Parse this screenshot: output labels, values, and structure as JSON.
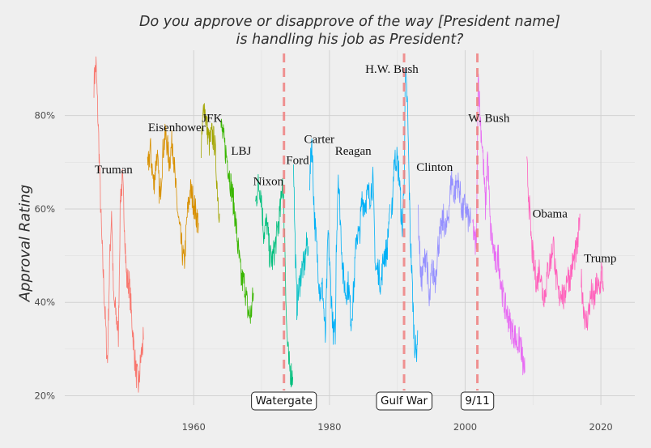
{
  "chart_data": {
    "type": "line",
    "title": "Do you approve or disapprove of the way [President name]",
    "title_line2": "is handling his job as President?",
    "xlabel": "",
    "ylabel": "Approval Rating",
    "xlim": [
      1941,
      2025
    ],
    "ylim": [
      18,
      94
    ],
    "x_ticks": [
      1960,
      1980,
      2000,
      2020
    ],
    "x_tick_labels": [
      "1960",
      "1980",
      "2000",
      "2020"
    ],
    "y_ticks": [
      20,
      40,
      60,
      80
    ],
    "y_tick_labels": [
      "20%",
      "40%",
      "60%",
      "80%"
    ],
    "grid": true,
    "legend": "none",
    "series": [
      {
        "name": "Truman",
        "color": "#F8766D",
        "label_x": 1948.2,
        "label_y": 68.5,
        "points": [
          [
            1945.3,
            87
          ],
          [
            1945.6,
            91
          ],
          [
            1946.0,
            75
          ],
          [
            1946.4,
            55
          ],
          [
            1946.8,
            42
          ],
          [
            1947.1,
            32
          ],
          [
            1947.3,
            27
          ],
          [
            1947.6,
            48
          ],
          [
            1947.9,
            60
          ],
          [
            1948.2,
            40
          ],
          [
            1948.5,
            38
          ],
          [
            1948.9,
            33
          ],
          [
            1949.2,
            63
          ],
          [
            1949.5,
            66
          ],
          [
            1949.8,
            57
          ],
          [
            1950.1,
            45
          ],
          [
            1950.5,
            44
          ],
          [
            1950.8,
            38
          ],
          [
            1951.2,
            30
          ],
          [
            1951.5,
            25
          ],
          [
            1951.9,
            22
          ],
          [
            1952.2,
            28
          ],
          [
            1952.6,
            32
          ]
        ]
      },
      {
        "name": "Eisenhower",
        "color": "#D89000",
        "label_x": 1957.5,
        "label_y": 77.5,
        "points": [
          [
            1953.2,
            68
          ],
          [
            1953.6,
            73
          ],
          [
            1954.1,
            65
          ],
          [
            1954.6,
            72
          ],
          [
            1955.0,
            62
          ],
          [
            1955.5,
            73
          ],
          [
            1955.9,
            76
          ],
          [
            1956.4,
            70
          ],
          [
            1956.9,
            75
          ],
          [
            1957.3,
            65
          ],
          [
            1957.8,
            57
          ],
          [
            1958.2,
            52
          ],
          [
            1958.6,
            48
          ],
          [
            1959.0,
            58
          ],
          [
            1959.5,
            64
          ],
          [
            1959.9,
            62
          ],
          [
            1960.3,
            59
          ],
          [
            1960.7,
            57
          ]
        ]
      },
      {
        "name": "JFK",
        "color": "#A3A500",
        "label_x": 1962.7,
        "label_y": 79.5,
        "points": [
          [
            1961.1,
            72
          ],
          [
            1961.5,
            83
          ],
          [
            1961.9,
            78
          ],
          [
            1962.3,
            74
          ],
          [
            1962.7,
            76
          ],
          [
            1963.1,
            74
          ],
          [
            1963.5,
            64
          ],
          [
            1963.8,
            59
          ]
        ]
      },
      {
        "name": "LBJ",
        "color": "#39B600",
        "label_x": 1967.0,
        "label_y": 72.5,
        "points": [
          [
            1964.0,
            78
          ],
          [
            1964.5,
            74
          ],
          [
            1965.0,
            70
          ],
          [
            1965.5,
            65
          ],
          [
            1966.0,
            60
          ],
          [
            1966.5,
            52
          ],
          [
            1967.0,
            45
          ],
          [
            1967.5,
            44
          ],
          [
            1968.0,
            38
          ],
          [
            1968.4,
            37
          ],
          [
            1968.8,
            42
          ]
        ]
      },
      {
        "name": "Nixon",
        "color": "#00BF7D",
        "label_x": 1971.0,
        "label_y": 66,
        "points": [
          [
            1969.1,
            61
          ],
          [
            1969.5,
            65
          ],
          [
            1969.9,
            64
          ],
          [
            1970.3,
            55
          ],
          [
            1970.8,
            57
          ],
          [
            1971.2,
            50
          ],
          [
            1971.6,
            49
          ],
          [
            1972.0,
            52
          ],
          [
            1972.4,
            56
          ],
          [
            1972.8,
            60
          ],
          [
            1973.1,
            67
          ],
          [
            1973.4,
            55
          ],
          [
            1973.7,
            34
          ],
          [
            1974.0,
            27
          ],
          [
            1974.3,
            25
          ],
          [
            1974.6,
            24
          ]
        ]
      },
      {
        "name": "Ford",
        "color": "#00BFC4",
        "label_x": 1975.3,
        "label_y": 70.5,
        "points": [
          [
            1974.7,
            71
          ],
          [
            1974.9,
            55
          ],
          [
            1975.2,
            39
          ],
          [
            1975.5,
            43
          ],
          [
            1975.9,
            47
          ],
          [
            1976.3,
            48
          ],
          [
            1976.7,
            53
          ],
          [
            1976.9,
            52
          ]
        ]
      },
      {
        "name": "Carter",
        "color": "#00B0F6",
        "label_x": 1978.5,
        "label_y": 75,
        "points": [
          [
            1977.1,
            66
          ],
          [
            1977.4,
            75
          ],
          [
            1977.8,
            58
          ],
          [
            1978.2,
            50
          ],
          [
            1978.6,
            42
          ],
          [
            1979.0,
            43
          ],
          [
            1979.4,
            32
          ],
          [
            1979.8,
            55
          ],
          [
            1980.2,
            43
          ],
          [
            1980.6,
            33
          ],
          [
            1980.9,
            34
          ],
          [
            1981.0,
            51
          ],
          [
            1981.3,
            68
          ],
          [
            1981.6,
            58
          ],
          [
            1982.0,
            46
          ],
          [
            1982.4,
            42
          ],
          [
            1982.8,
            44
          ],
          [
            1983.2,
            36
          ],
          [
            1983.6,
            43
          ],
          [
            1984.0,
            55
          ],
          [
            1984.4,
            54
          ],
          [
            1984.8,
            62
          ],
          [
            1985.2,
            61
          ],
          [
            1985.6,
            63
          ],
          [
            1986.0,
            63
          ],
          [
            1986.4,
            66
          ],
          [
            1986.8,
            47
          ],
          [
            1987.2,
            47
          ],
          [
            1987.6,
            44
          ],
          [
            1988.0,
            50
          ],
          [
            1988.5,
            51
          ],
          [
            1988.9,
            61
          ]
        ]
      },
      {
        "name": "H.W. Bush",
        "color": "#00B0F6",
        "label_x": 1989.2,
        "label_y": 90,
        "points": [
          [
            1989.1,
            55
          ],
          [
            1989.5,
            70
          ],
          [
            1989.9,
            71
          ],
          [
            1990.3,
            67
          ],
          [
            1990.7,
            55
          ],
          [
            1991.0,
            66
          ],
          [
            1991.2,
            89
          ],
          [
            1991.5,
            82
          ],
          [
            1991.9,
            55
          ],
          [
            1992.2,
            44
          ],
          [
            1992.5,
            32
          ],
          [
            1992.8,
            29
          ],
          [
            1993.0,
            34
          ]
        ]
      },
      {
        "name": "Reagan",
        "color": "#00B0F6",
        "label_x": 1983.5,
        "label_y": 72.5,
        "points": []
      },
      {
        "name": "Clinton",
        "color": "#9590FF",
        "label_x": 1995.5,
        "label_y": 69,
        "points": [
          [
            1993.1,
            58
          ],
          [
            1993.5,
            44
          ],
          [
            1993.9,
            48
          ],
          [
            1994.3,
            51
          ],
          [
            1994.7,
            39
          ],
          [
            1995.1,
            47
          ],
          [
            1995.6,
            45
          ],
          [
            1996.0,
            52
          ],
          [
            1996.4,
            55
          ],
          [
            1996.8,
            58
          ],
          [
            1997.2,
            55
          ],
          [
            1997.6,
            60
          ],
          [
            1998.0,
            67
          ],
          [
            1998.4,
            63
          ],
          [
            1998.8,
            66
          ],
          [
            1999.2,
            64
          ],
          [
            1999.6,
            59
          ],
          [
            2000.0,
            61
          ],
          [
            2000.4,
            58
          ],
          [
            2000.8,
            57
          ]
        ]
      },
      {
        "name": "W. Bush",
        "color": "#E76BF3",
        "label_x": 2003.5,
        "label_y": 79.5,
        "points": [
          [
            2001.1,
            57
          ],
          [
            2001.5,
            52
          ],
          [
            2001.7,
            55
          ],
          [
            2001.9,
            90
          ],
          [
            2002.2,
            80
          ],
          [
            2002.6,
            72
          ],
          [
            2003.0,
            60
          ],
          [
            2003.3,
            72
          ],
          [
            2003.7,
            56
          ],
          [
            2004.1,
            52
          ],
          [
            2004.5,
            48
          ],
          [
            2004.9,
            50
          ],
          [
            2005.3,
            44
          ],
          [
            2005.7,
            40
          ],
          [
            2006.1,
            38
          ],
          [
            2006.5,
            36
          ],
          [
            2006.9,
            34
          ],
          [
            2007.3,
            33
          ],
          [
            2007.7,
            31
          ],
          [
            2008.1,
            32
          ],
          [
            2008.5,
            27
          ],
          [
            2008.8,
            25
          ]
        ]
      },
      {
        "name": "Obama",
        "color": "#FF62BC",
        "label_x": 2012.5,
        "label_y": 59,
        "points": [
          [
            2009.1,
            69
          ],
          [
            2009.4,
            62
          ],
          [
            2009.8,
            52
          ],
          [
            2010.2,
            47
          ],
          [
            2010.6,
            44
          ],
          [
            2011.0,
            48
          ],
          [
            2011.4,
            42
          ],
          [
            2011.8,
            42
          ],
          [
            2012.2,
            47
          ],
          [
            2012.6,
            49
          ],
          [
            2013.0,
            53
          ],
          [
            2013.4,
            45
          ],
          [
            2013.8,
            41
          ],
          [
            2014.2,
            43
          ],
          [
            2014.6,
            40
          ],
          [
            2015.0,
            46
          ],
          [
            2015.4,
            45
          ],
          [
            2015.8,
            48
          ],
          [
            2016.2,
            50
          ],
          [
            2016.6,
            52
          ],
          [
            2016.9,
            59
          ]
        ]
      },
      {
        "name": "Trump",
        "color": "#FF62BC",
        "label_x": 2019.9,
        "label_y": 49.5,
        "points": [
          [
            2017.1,
            45
          ],
          [
            2017.4,
            40
          ],
          [
            2017.8,
            35
          ],
          [
            2018.2,
            38
          ],
          [
            2018.6,
            42
          ],
          [
            2019.0,
            40
          ],
          [
            2019.4,
            44
          ],
          [
            2019.8,
            42
          ],
          [
            2020.1,
            47
          ],
          [
            2020.4,
            43
          ]
        ]
      }
    ],
    "events": [
      {
        "label": "Watergate",
        "x": 1973.3
      },
      {
        "label": "Gulf War",
        "x": 1991.0
      },
      {
        "label": "9/11",
        "x": 2001.8
      }
    ]
  }
}
